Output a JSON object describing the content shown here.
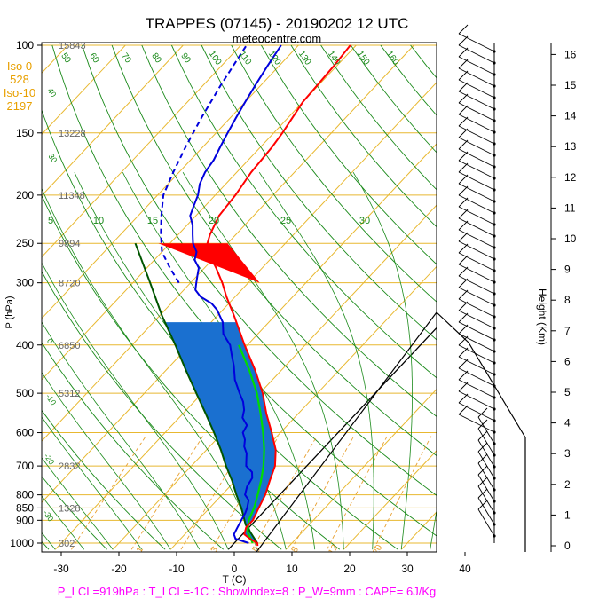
{
  "chart_data": {
    "type": "skew-t log-p sounding",
    "title": "TRAPPES (07145) - 20190202 12 UTC",
    "subtitle": "meteocentre.com",
    "xlabel": "T (C)",
    "ylabel": "P (hPa)",
    "y2label": "Height (Km)",
    "xlim": [
      -35,
      50
    ],
    "ylim": [
      1030,
      100
    ],
    "x_ticks": [
      "-30",
      "-20",
      "-10",
      "0",
      "10",
      "20",
      "30",
      "40"
    ],
    "p_ticks": [
      "100",
      "150",
      "200",
      "250",
      "300",
      "400",
      "500",
      "600",
      "700",
      "800",
      "850",
      "900",
      "1000"
    ],
    "height_ticks": [
      "0",
      "1",
      "2",
      "3",
      "4",
      "5",
      "6",
      "7",
      "8",
      "9",
      "10",
      "11",
      "12",
      "13",
      "14",
      "15",
      "16"
    ],
    "geopotential_labels": [
      {
        "p": 100,
        "text": "15843"
      },
      {
        "p": 150,
        "text": "13228"
      },
      {
        "p": 200,
        "text": "11348"
      },
      {
        "p": 250,
        "text": "9894"
      },
      {
        "p": 300,
        "text": "8720"
      },
      {
        "p": 400,
        "text": "6850"
      },
      {
        "p": 500,
        "text": "5312"
      },
      {
        "p": 700,
        "text": "2832"
      },
      {
        "p": 850,
        "text": "1328"
      },
      {
        "p": 1000,
        "text": "302"
      }
    ],
    "freezing_info": {
      "iso0_label": "Iso 0",
      "iso0_value": "528",
      "iso10_label": "Iso-10",
      "iso10_value": "2197"
    },
    "mixing_ratio_labels": [
      "1",
      "3",
      "5",
      "8",
      "12",
      "20"
    ],
    "dry_adiabat_labels": [
      "50",
      "60",
      "70",
      "80",
      "90",
      "100",
      "110",
      "120",
      "130",
      "140",
      "150",
      "160"
    ],
    "moist_adiabat_labels": [
      "5",
      "10",
      "15",
      "20",
      "25",
      "30"
    ],
    "skew_isotherm_labels": [
      "30",
      "20",
      "10",
      "0",
      "-10",
      "-20",
      "-30",
      "-40"
    ],
    "wet_bulb_labels": [
      "40",
      "30",
      "0",
      "-10",
      "-20",
      "-30"
    ],
    "summary_line": "P_LCL=919hPa : T_LCL=-1C : ShowIndex=8 : P_W=9mm : CAPE= 6J/Kg",
    "summary_parts": {
      "p_lcl": "919hPa",
      "t_lcl": "-1C",
      "show_index": "8",
      "pw": "9mm",
      "cape": "6J/Kg"
    },
    "series": [
      {
        "name": "temperature",
        "color": "#ff0000",
        "points": [
          [
            1013,
            4.5
          ],
          [
            1000,
            4.0
          ],
          [
            980,
            2.0
          ],
          [
            960,
            0.3
          ],
          [
            930,
            -0.5
          ],
          [
            900,
            -0.5
          ],
          [
            850,
            -1.5
          ],
          [
            800,
            -2.5
          ],
          [
            750,
            -4.0
          ],
          [
            700,
            -5.5
          ],
          [
            650,
            -8.0
          ],
          [
            600,
            -11.5
          ],
          [
            550,
            -15.5
          ],
          [
            500,
            -19.5
          ],
          [
            450,
            -24.5
          ],
          [
            400,
            -30.5
          ],
          [
            350,
            -37.0
          ],
          [
            320,
            -41.5
          ],
          [
            300,
            -44.5
          ],
          [
            280,
            -48.0
          ],
          [
            260,
            -52.0
          ],
          [
            250,
            -53.5
          ],
          [
            240,
            -54.5
          ],
          [
            220,
            -56.0
          ],
          [
            200,
            -56.5
          ],
          [
            180,
            -57.5
          ],
          [
            160,
            -58.0
          ],
          [
            150,
            -58.5
          ],
          [
            130,
            -60.0
          ],
          [
            110,
            -60.5
          ],
          [
            100,
            -61.0
          ]
        ]
      },
      {
        "name": "dewpoint",
        "color": "#0000dd",
        "points": [
          [
            1000,
            2.5
          ],
          [
            980,
            -0.5
          ],
          [
            960,
            -1.5
          ],
          [
            930,
            -2.0
          ],
          [
            900,
            -2.5
          ],
          [
            870,
            -3.0
          ],
          [
            850,
            -3.5
          ],
          [
            820,
            -4.5
          ],
          [
            800,
            -6.0
          ],
          [
            770,
            -7.0
          ],
          [
            740,
            -7.5
          ],
          [
            720,
            -8.5
          ],
          [
            700,
            -10.5
          ],
          [
            680,
            -11.5
          ],
          [
            660,
            -12.5
          ],
          [
            640,
            -14.0
          ],
          [
            620,
            -15.0
          ],
          [
            600,
            -16.5
          ],
          [
            580,
            -17.0
          ],
          [
            560,
            -19.0
          ],
          [
            540,
            -20.0
          ],
          [
            520,
            -21.5
          ],
          [
            500,
            -23.5
          ],
          [
            470,
            -26.5
          ],
          [
            440,
            -29.0
          ],
          [
            420,
            -31.0
          ],
          [
            400,
            -33.0
          ],
          [
            380,
            -36.0
          ],
          [
            360,
            -38.0
          ],
          [
            340,
            -41.0
          ],
          [
            330,
            -43.0
          ],
          [
            320,
            -46.0
          ],
          [
            310,
            -48.0
          ],
          [
            300,
            -49.0
          ],
          [
            290,
            -50.0
          ],
          [
            280,
            -51.0
          ],
          [
            270,
            -53.0
          ],
          [
            260,
            -54.0
          ],
          [
            250,
            -56.0
          ],
          [
            240,
            -57.5
          ],
          [
            230,
            -59.0
          ],
          [
            220,
            -61.0
          ],
          [
            210,
            -62.0
          ],
          [
            200,
            -63.0
          ],
          [
            190,
            -64.5
          ],
          [
            180,
            -65.5
          ],
          [
            170,
            -66.0
          ],
          [
            160,
            -67.0
          ],
          [
            150,
            -68.0
          ],
          [
            140,
            -69.0
          ],
          [
            130,
            -70.0
          ],
          [
            120,
            -71.0
          ],
          [
            110,
            -72.0
          ],
          [
            100,
            -73.0
          ]
        ]
      },
      {
        "name": "wet-bulb",
        "color": "#00dd00",
        "points": [
          [
            1000,
            3.2
          ],
          [
            950,
            0.5
          ],
          [
            900,
            -1.2
          ],
          [
            850,
            -2.3
          ],
          [
            800,
            -3.8
          ],
          [
            750,
            -5.5
          ],
          [
            700,
            -7.5
          ],
          [
            650,
            -10.0
          ],
          [
            600,
            -13.0
          ],
          [
            550,
            -16.5
          ],
          [
            500,
            -20.5
          ],
          [
            450,
            -25.5
          ],
          [
            400,
            -31.5
          ]
        ]
      },
      {
        "name": "parcel",
        "color": "#005500",
        "points": [
          [
            1000,
            4.0
          ],
          [
            919,
            -1.0
          ],
          [
            850,
            -4.5
          ],
          [
            800,
            -7.5
          ],
          [
            750,
            -10.5
          ],
          [
            700,
            -14.0
          ],
          [
            650,
            -17.5
          ],
          [
            600,
            -21.5
          ],
          [
            550,
            -26.0
          ],
          [
            500,
            -31.0
          ],
          [
            450,
            -36.5
          ],
          [
            400,
            -42.5
          ],
          [
            350,
            -49.5
          ],
          [
            300,
            -57.0
          ],
          [
            250,
            -66.0
          ]
        ]
      },
      {
        "name": "dewpoint (upper, dashed)",
        "color": "#0000dd",
        "points": [
          [
            300,
            -52.0
          ],
          [
            280,
            -56.0
          ],
          [
            260,
            -60.0
          ],
          [
            240,
            -63.0
          ],
          [
            220,
            -66.0
          ],
          [
            200,
            -69.0
          ],
          [
            180,
            -71.0
          ],
          [
            160,
            -73.0
          ],
          [
            140,
            -75.0
          ],
          [
            120,
            -77.0
          ],
          [
            100,
            -79.0
          ]
        ]
      }
    ],
    "colors": {
      "isotherm": "#e8b830",
      "dry_adiabat": "#1a8a1a",
      "moist_adiabat": "#1a8a1a",
      "mixing_ratio": "#e8a030",
      "cape_fill": "#1a70d0",
      "cin_fill": "#ff0000",
      "summary": "#ff00ff",
      "freezing": "#e8a000"
    }
  }
}
